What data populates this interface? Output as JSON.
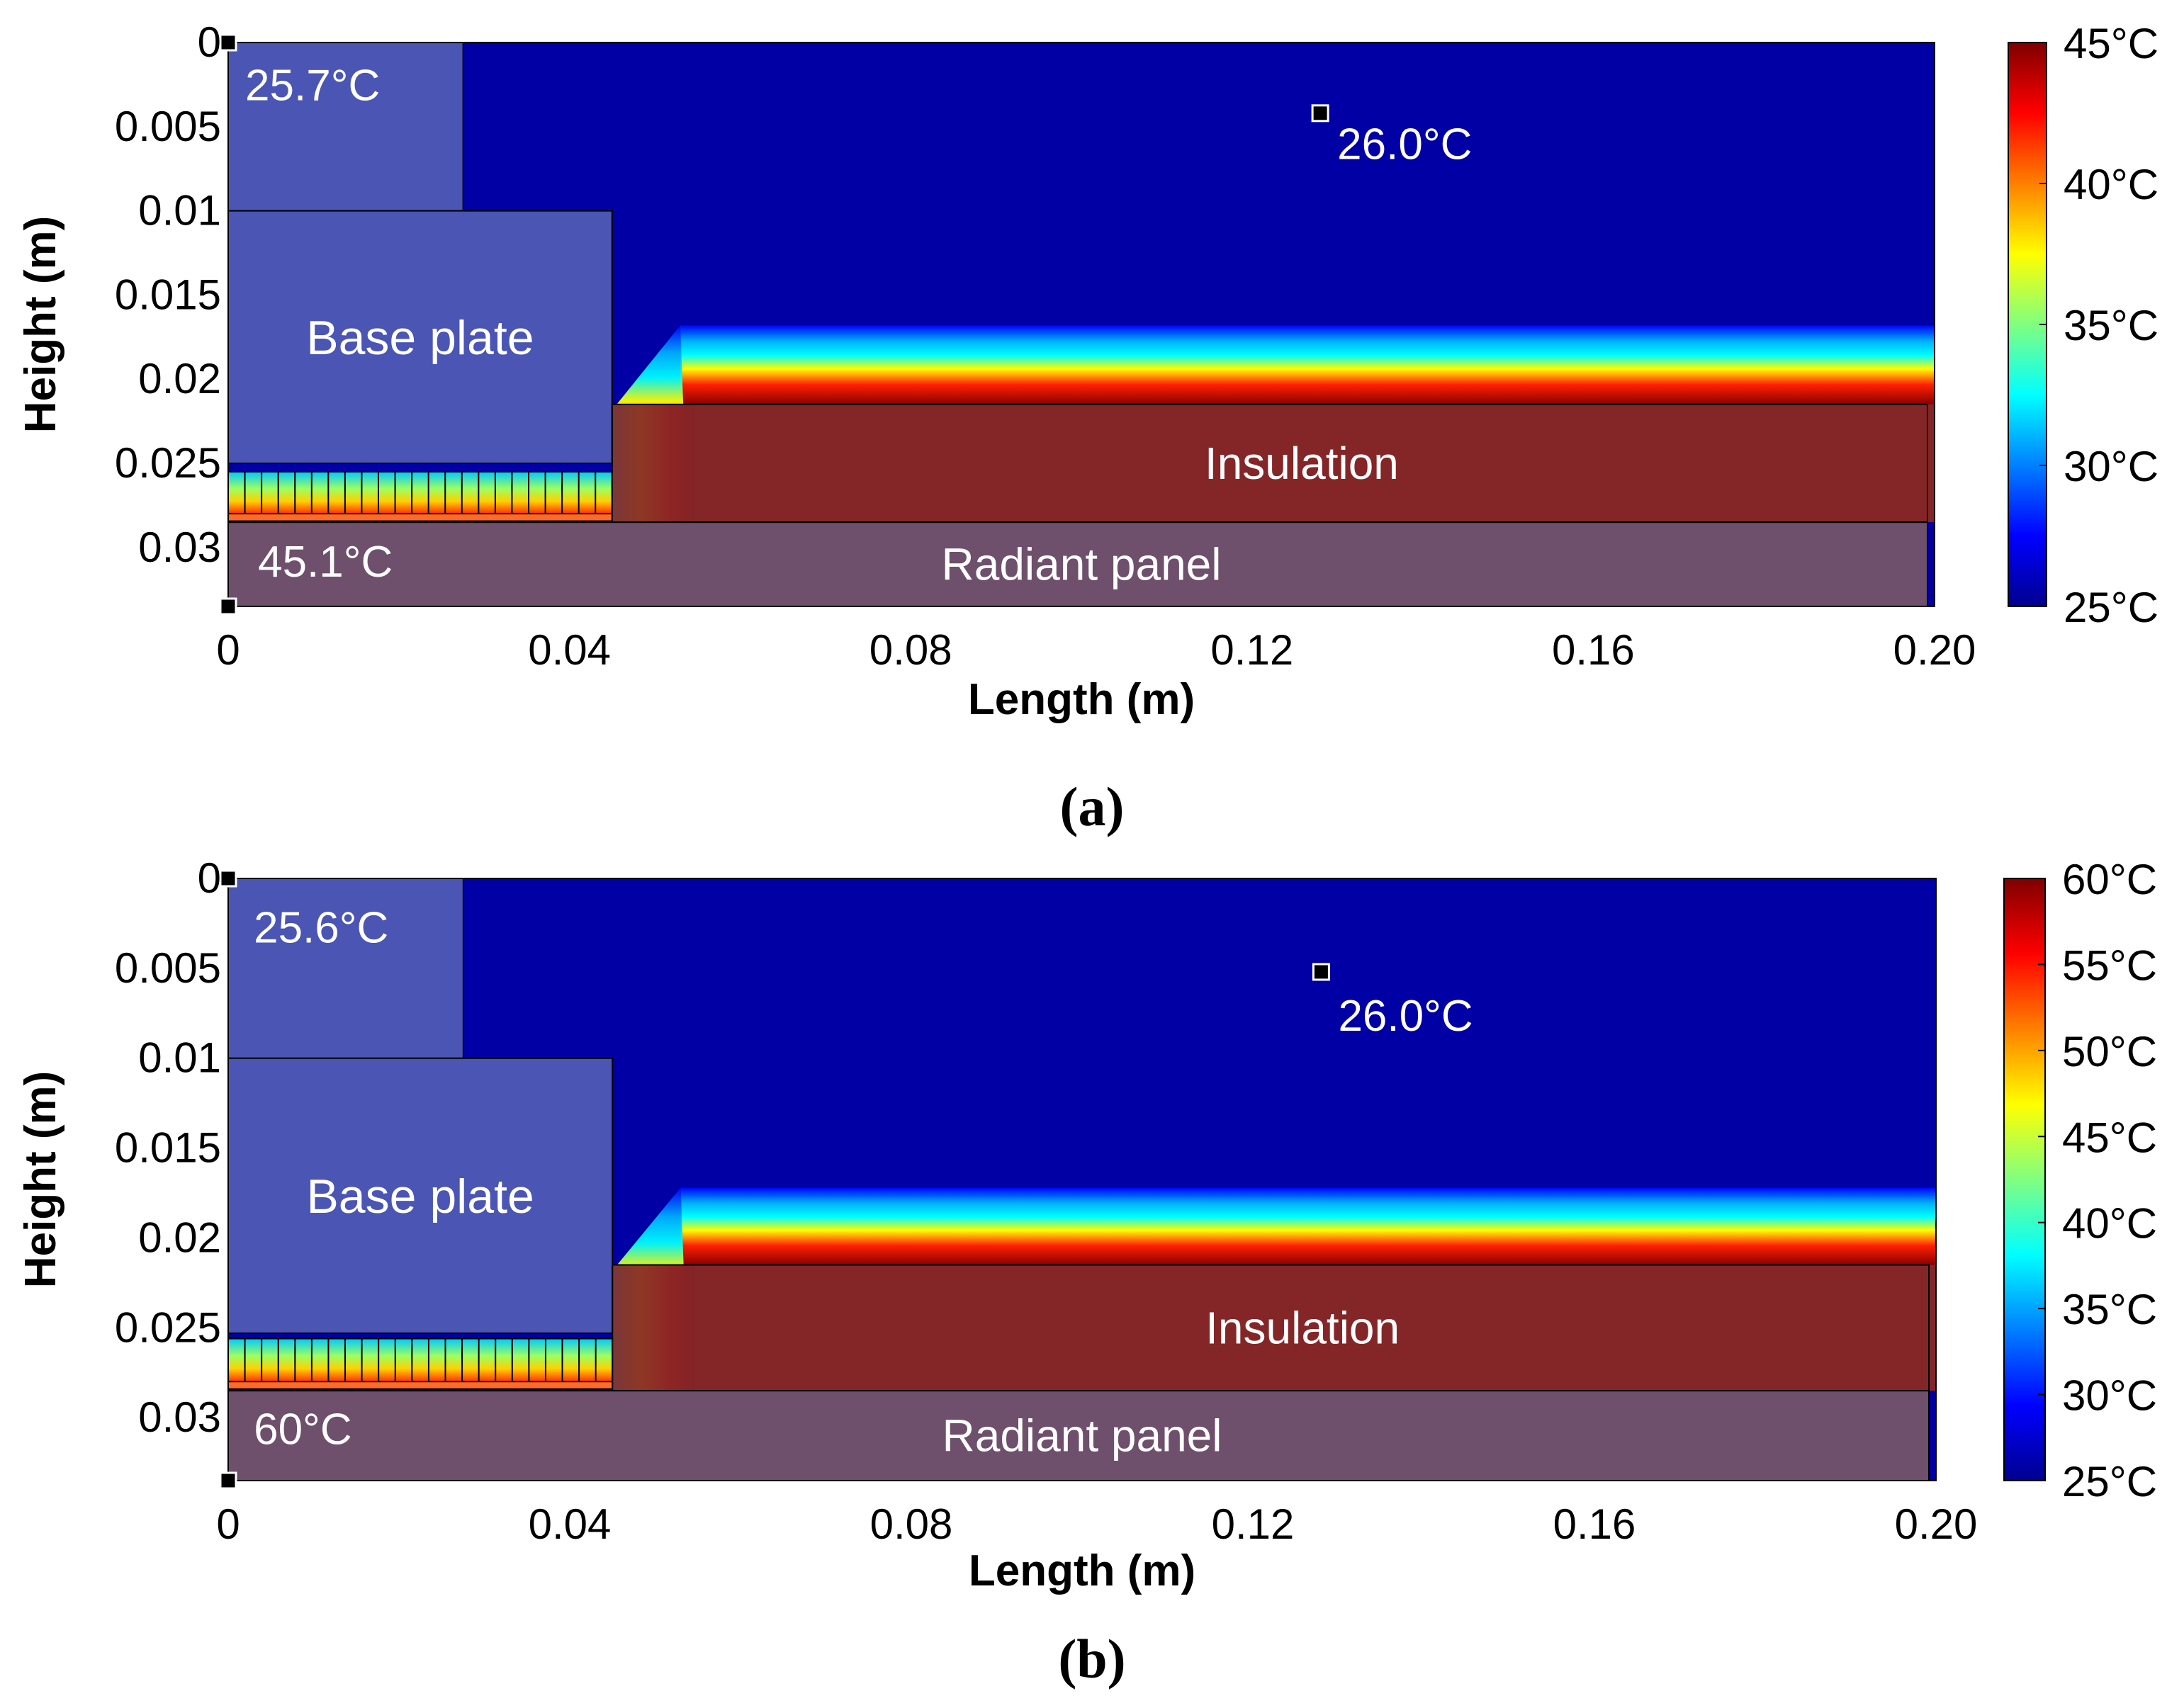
{
  "colors": {
    "cold": "#0000a4",
    "hot": "#7a0000",
    "base_plate": "#4a55b4",
    "insulation": "#842628",
    "radiant_panel": "#6e4f6c",
    "label_light": "#ffffff",
    "marker": "#000000"
  },
  "chart_data": [
    {
      "id": "a",
      "type": "heatmap",
      "sublabel": "(a)",
      "xlabel": "Length (m)",
      "ylabel": "Height (m)",
      "xlim": [
        0,
        0.2
      ],
      "ylim": [
        0.0335,
        0
      ],
      "xticks": [
        {
          "v": 0,
          "t": "0"
        },
        {
          "v": 0.04,
          "t": "0.04"
        },
        {
          "v": 0.08,
          "t": "0.08"
        },
        {
          "v": 0.12,
          "t": "0.12"
        },
        {
          "v": 0.16,
          "t": "0.16"
        },
        {
          "v": 0.2,
          "t": "0.20"
        }
      ],
      "yticks": [
        {
          "v": 0,
          "t": "0"
        },
        {
          "v": 0.005,
          "t": "0.005"
        },
        {
          "v": 0.01,
          "t": "0.01"
        },
        {
          "v": 0.015,
          "t": "0.015"
        },
        {
          "v": 0.02,
          "t": "0.02"
        },
        {
          "v": 0.025,
          "t": "0.025"
        },
        {
          "v": 0.03,
          "t": "0.03"
        }
      ],
      "colorbar": {
        "min": 25,
        "max": 45,
        "ticks": [
          "45°C",
          "40°C",
          "35°C",
          "30°C",
          "25°C"
        ]
      },
      "regions": [
        {
          "name": "Base plate",
          "x": [
            0,
            0.045
          ],
          "y": [
            0.01,
            0.025
          ]
        },
        {
          "name": "Insulation",
          "x": [
            0.045,
            0.2
          ],
          "y": [
            0.0215,
            0.0285
          ]
        },
        {
          "name": "Radiant panel",
          "x": [
            0,
            0.2
          ],
          "y": [
            0.0285,
            0.0335
          ]
        }
      ],
      "upper_block": {
        "x": [
          0,
          0.0275
        ],
        "y": [
          0,
          0.01
        ]
      },
      "heater_fins": {
        "x": [
          0,
          0.045
        ],
        "y": [
          0.0255,
          0.028
        ],
        "count": 23
      },
      "hot_layer": {
        "x_start": 0.053,
        "hot_top": 0.0215,
        "gradient_top": 0.0168
      },
      "annotations": [
        {
          "text": "25.7°C",
          "x": 0.001,
          "y": 0.0025
        },
        {
          "text": "26.0°C",
          "x": 0.129,
          "y": 0.006
        },
        {
          "text": "45.1°C",
          "x": 0.0025,
          "y": 0.0308
        }
      ],
      "markers": [
        {
          "x": 0,
          "y": 0
        },
        {
          "x": 0.128,
          "y": 0.0042
        },
        {
          "x": 0,
          "y": 0.0335
        }
      ]
    },
    {
      "id": "b",
      "type": "heatmap",
      "sublabel": "(b)",
      "xlabel": "Length (m)",
      "ylabel": "Height (m)",
      "xlim": [
        0,
        0.2
      ],
      "ylim": [
        0.0335,
        0
      ],
      "xticks": [
        {
          "v": 0,
          "t": "0"
        },
        {
          "v": 0.04,
          "t": "0.04"
        },
        {
          "v": 0.08,
          "t": "0.08"
        },
        {
          "v": 0.12,
          "t": "0.12"
        },
        {
          "v": 0.16,
          "t": "0.16"
        },
        {
          "v": 0.2,
          "t": "0.20"
        }
      ],
      "yticks": [
        {
          "v": 0,
          "t": "0"
        },
        {
          "v": 0.005,
          "t": "0.005"
        },
        {
          "v": 0.01,
          "t": "0.01"
        },
        {
          "v": 0.015,
          "t": "0.015"
        },
        {
          "v": 0.02,
          "t": "0.02"
        },
        {
          "v": 0.025,
          "t": "0.025"
        },
        {
          "v": 0.03,
          "t": "0.03"
        }
      ],
      "colorbar": {
        "min": 25,
        "max": 60,
        "ticks": [
          "60°C",
          "55°C",
          "50°C",
          "45°C",
          "40°C",
          "35°C",
          "30°C",
          "25°C"
        ]
      },
      "regions": [
        {
          "name": "Base plate",
          "x": [
            0,
            0.045
          ],
          "y": [
            0.01,
            0.0253
          ]
        },
        {
          "name": "Insulation",
          "x": [
            0.045,
            0.2
          ],
          "y": [
            0.0215,
            0.0285
          ]
        },
        {
          "name": "Radiant panel",
          "x": [
            0,
            0.2
          ],
          "y": [
            0.0285,
            0.0335
          ]
        }
      ],
      "upper_block": {
        "x": [
          0,
          0.0275
        ],
        "y": [
          0,
          0.01
        ]
      },
      "heater_fins": {
        "x": [
          0,
          0.045
        ],
        "y": [
          0.0256,
          0.028
        ],
        "count": 23
      },
      "hot_layer": {
        "x_start": 0.053,
        "hot_top": 0.0215,
        "gradient_top": 0.0172
      },
      "annotations": [
        {
          "text": "25.6°C",
          "x": 0.002,
          "y": 0.0027
        },
        {
          "text": "26.0°C",
          "x": 0.129,
          "y": 0.0076
        },
        {
          "text": "60°C",
          "x": 0.002,
          "y": 0.0306
        }
      ],
      "markers": [
        {
          "x": 0,
          "y": 0
        },
        {
          "x": 0.128,
          "y": 0.0052
        },
        {
          "x": 0,
          "y": 0.0335
        }
      ]
    }
  ]
}
